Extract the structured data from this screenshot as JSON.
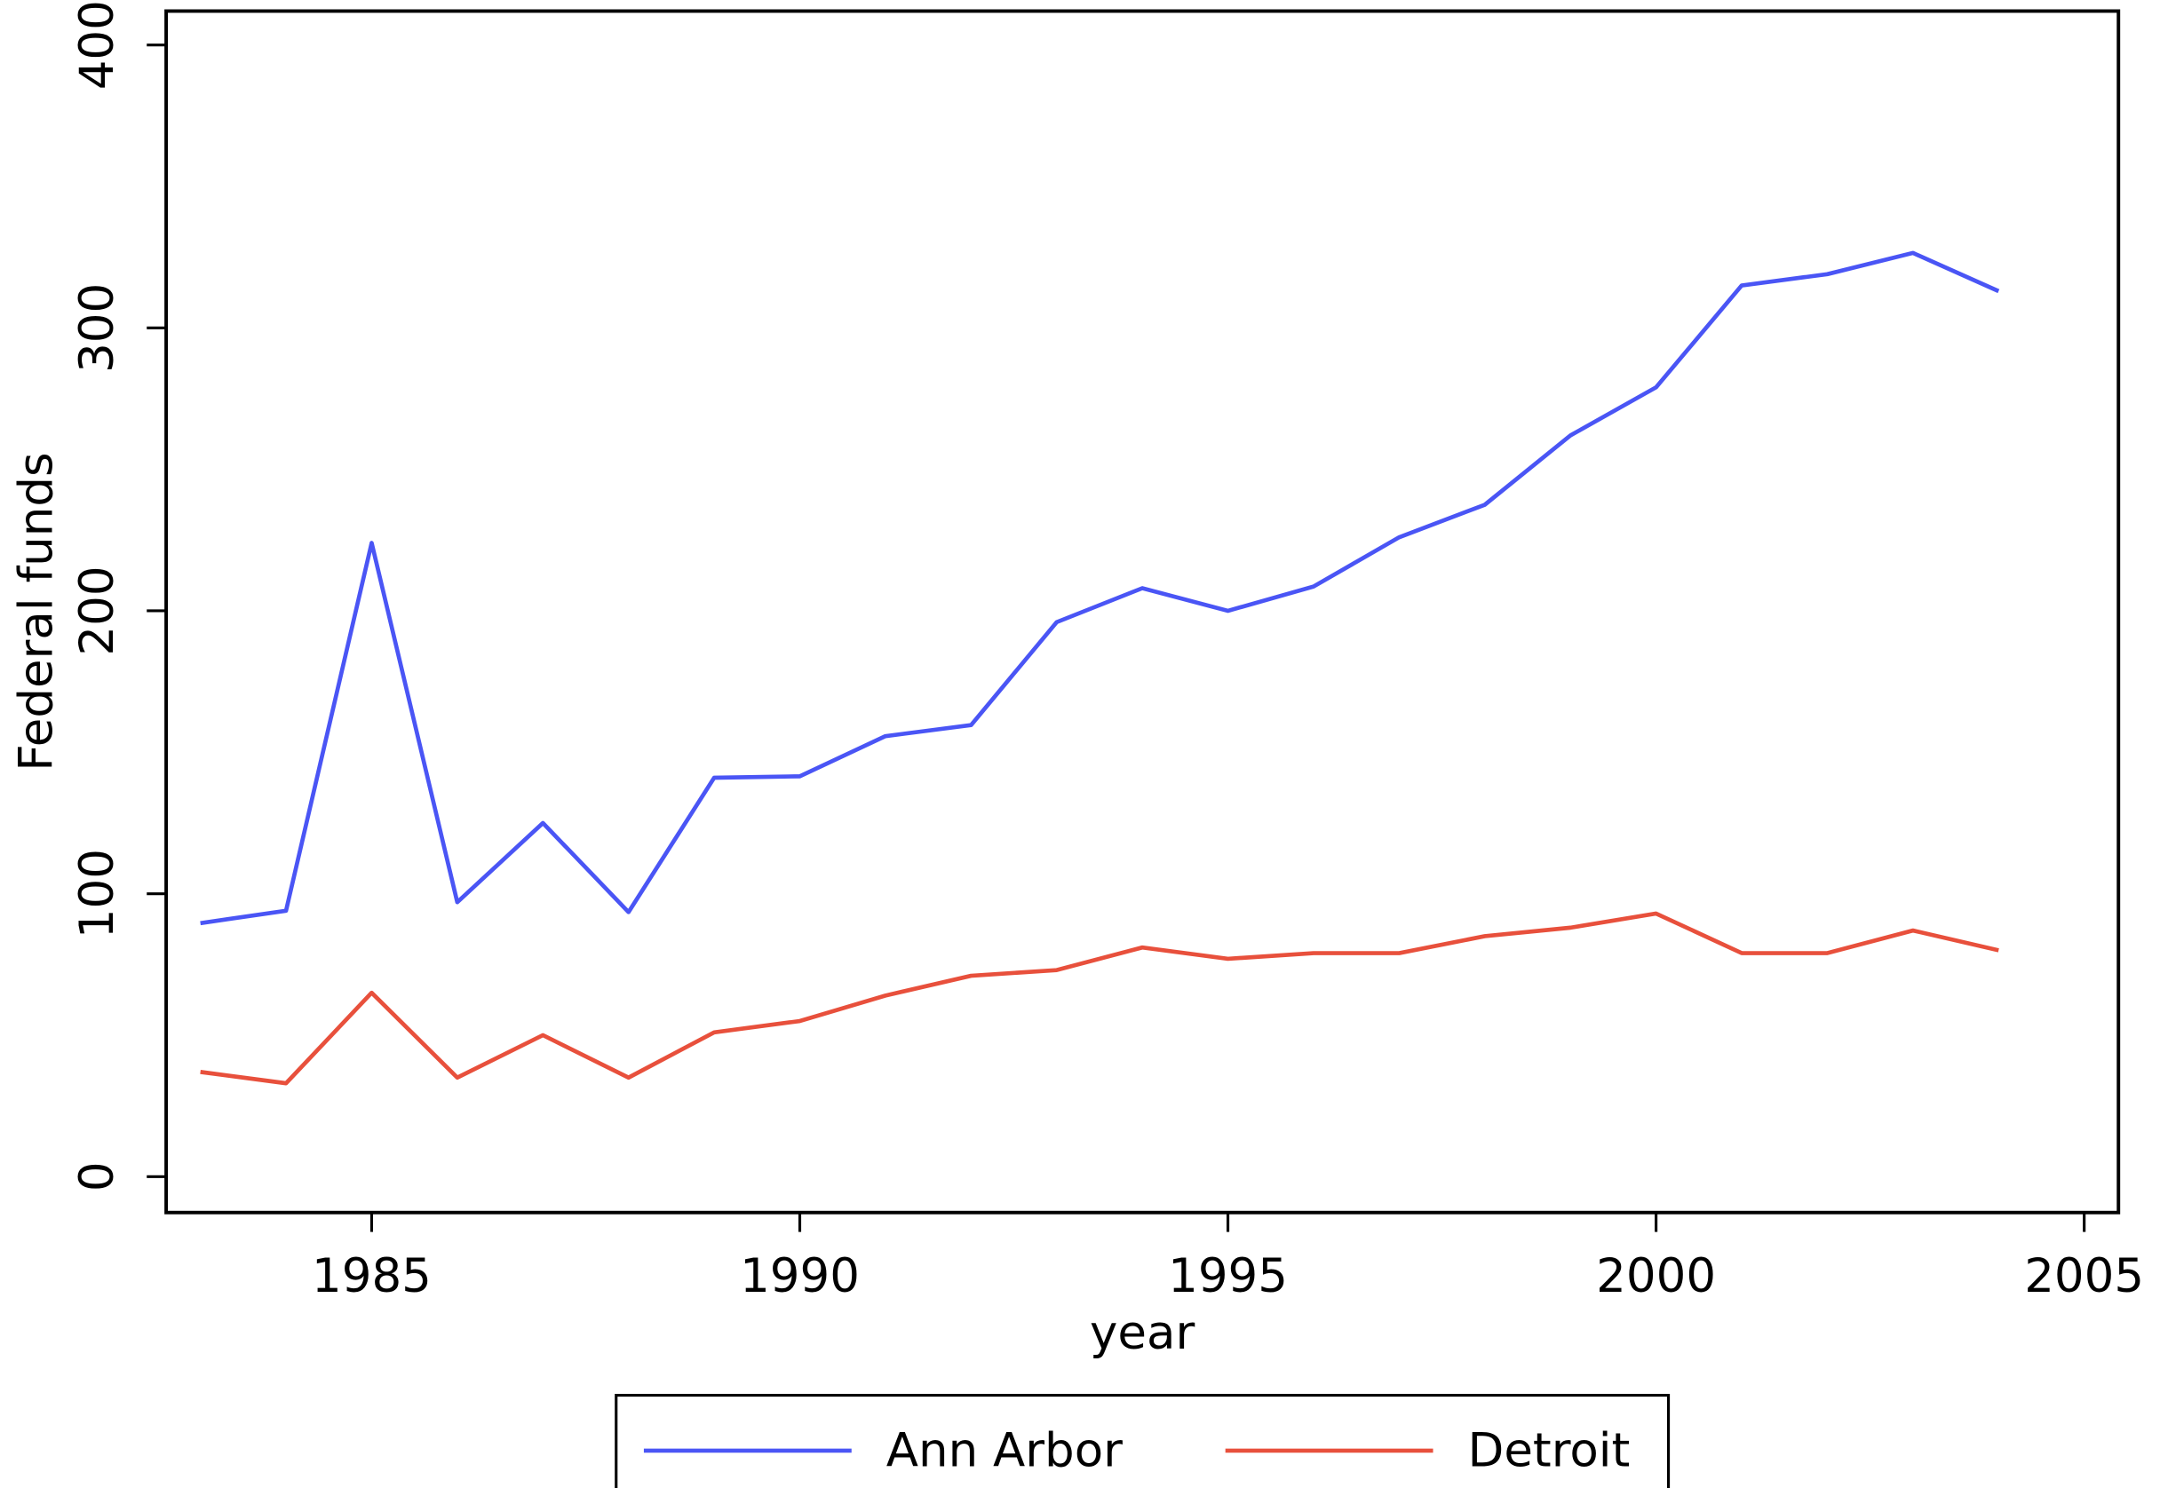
{
  "chart_data": {
    "type": "line",
    "x_label": "year",
    "y_label": "Federal funds",
    "x": [
      1983,
      1984,
      1985,
      1986,
      1987,
      1988,
      1989,
      1990,
      1991,
      1992,
      1993,
      1994,
      1995,
      1996,
      1997,
      1998,
      1999,
      2000,
      2001,
      2002,
      2003,
      2004
    ],
    "series": [
      {
        "name": "Ann Arbor",
        "color": "#4a55f5",
        "values": [
          89.6,
          94,
          224,
          97,
          125,
          93.5,
          141,
          141.5,
          155.7,
          159.6,
          196,
          208,
          200,
          208.6,
          226,
          237.5,
          262,
          279,
          315,
          319,
          326.5,
          313
        ]
      },
      {
        "name": "Detroit",
        "color": "#e8503c",
        "values": [
          37,
          33,
          65,
          35,
          50,
          35,
          51,
          55,
          64,
          71,
          73,
          81,
          77,
          79,
          79,
          85,
          88,
          93,
          79,
          79,
          87,
          80
        ]
      }
    ],
    "xlim": [
      1982.6,
      2005.4
    ],
    "xticks": [
      1985,
      1990,
      1995,
      2000,
      2005
    ],
    "ylim": [
      -12.7,
      412
    ],
    "yticks": [
      0,
      100,
      200,
      300,
      400
    ],
    "legend": "bottom"
  }
}
